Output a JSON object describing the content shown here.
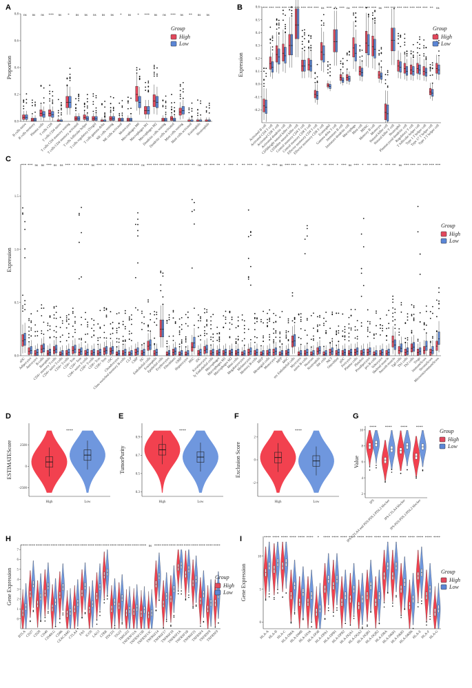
{
  "colors": {
    "high": "#e2485c",
    "low": "#5b86d6",
    "high_violin": "#f2414f",
    "low_violin": "#6f97de"
  },
  "legend": {
    "title": "Group",
    "items": [
      "High",
      "Low"
    ]
  },
  "chart_data": [
    {
      "panel": "A",
      "type": "boxplot",
      "title": "",
      "xlabel": "",
      "ylabel": "Proportion",
      "ylim": [
        0,
        0.8
      ],
      "y_ticks": [
        "0.0",
        "0.2",
        "0.4",
        "0.6",
        "0.8"
      ],
      "categories": [
        "B cells naive",
        "B cells memory",
        "Plasma cells",
        "T cells CD8",
        "T cells CD4 naive",
        "T cells CD4 memory resting",
        "T cells CD4 memory activated",
        "T cells follicular helper",
        "T cells regulatory (Tregs)",
        "T cells gamma delta",
        "NK cells resting",
        "NK cells activated",
        "Monocytes",
        "Macrophages M0",
        "Macrophages M1",
        "Macrophages M2",
        "Dendritic cells resting",
        "Dendritic cells activated",
        "Mast cells resting",
        "Mast cells activated",
        "Eosinophils",
        "Neutrophils"
      ],
      "significance": [
        "ns",
        "ns",
        "ns",
        "***",
        "ns",
        "*",
        "ns",
        "ns",
        "ns",
        "ns",
        "ns",
        "*",
        "ns",
        "*",
        "***",
        "ns",
        "ns",
        "***",
        "ns",
        "**",
        "ns",
        "ns"
      ],
      "series": [
        {
          "name": "High",
          "medians": [
            0.03,
            0.01,
            0.06,
            0.06,
            0.0,
            0.14,
            0.02,
            0.03,
            0.02,
            0.0,
            0.02,
            0.01,
            0.01,
            0.2,
            0.08,
            0.15,
            0.01,
            0.02,
            0.07,
            0.0,
            0.0,
            0.0
          ]
        },
        {
          "name": "Low",
          "medians": [
            0.03,
            0.01,
            0.05,
            0.05,
            0.0,
            0.14,
            0.02,
            0.02,
            0.02,
            0.0,
            0.02,
            0.01,
            0.01,
            0.14,
            0.08,
            0.14,
            0.01,
            0.01,
            0.08,
            0.0,
            0.0,
            0.0
          ]
        }
      ]
    },
    {
      "panel": "B",
      "type": "boxplot",
      "title": "",
      "xlabel": "",
      "ylabel": "Expression",
      "ylim": [
        -0.3,
        0.6
      ],
      "y_ticks": [
        "-0.2",
        "-0.1",
        "0.0",
        "0.1",
        "0.2",
        "0.3",
        "0.4",
        "0.5",
        "0.6"
      ],
      "categories": [
        "Activated B cell",
        "Activated CD4 T cell",
        "Activated CD8 T cell",
        "Activated dendritic cell",
        "CD56bright natural killer cell",
        "CD56dim natural killer cell",
        "Central memory CD4 T cell",
        "Central memory CD8 T cell",
        "Effector memeory CD4 T cell",
        "Effector memeory CD8 T cell",
        "Eosinophil",
        "Gamma delta T cell",
        "Immature B cell",
        "Immature dendritic cell",
        "Macrophage",
        "Mast cell",
        "MDSC",
        "Memory B cell",
        "Monocyte",
        "Natural killer cell",
        "Natural killer T cell",
        "Neutrophil",
        "Plasmacytoid dendritic cell",
        "Regulatory T cell",
        "T follicular helper cell",
        "Type 1 T helper cell",
        "Type 17 T helper cell",
        "Type 2 T helper cell"
      ],
      "significance": [
        "***",
        "***",
        "***",
        "***",
        "***",
        "***",
        "***",
        "***",
        "***",
        "ns",
        "***",
        "*",
        "***",
        "ns",
        "***",
        "***",
        "***",
        "***",
        "ns",
        "***",
        "***",
        "***",
        "***",
        "***",
        "***",
        "***",
        "**",
        "ns"
      ],
      "series": [
        {
          "name": "High",
          "medians": [
            -0.17,
            0.16,
            0.23,
            0.24,
            0.3,
            0.46,
            0.14,
            0.15,
            -0.08,
            0.25,
            -0.01,
            0.33,
            0.05,
            0.05,
            0.28,
            0.1,
            0.32,
            0.29,
            0.07,
            -0.22,
            0.34,
            0.14,
            0.12,
            0.11,
            0.12,
            0.1,
            -0.06,
            0.12
          ]
        },
        {
          "name": "Low",
          "medians": [
            -0.18,
            0.13,
            0.21,
            0.22,
            0.3,
            0.46,
            0.14,
            0.14,
            -0.09,
            0.23,
            -0.02,
            0.33,
            0.03,
            0.04,
            0.24,
            0.09,
            0.3,
            0.27,
            0.06,
            -0.23,
            0.34,
            0.13,
            0.1,
            0.1,
            0.11,
            0.09,
            -0.07,
            0.11
          ]
        }
      ]
    },
    {
      "panel": "C",
      "type": "boxplot",
      "title": "",
      "xlabel": "",
      "ylabel": "Expression",
      "ylim": [
        0,
        1.8
      ],
      "y_ticks": [
        "0.0",
        "0.5",
        "1.0",
        "1.5"
      ],
      "categories": [
        "aDC",
        "Adipocytes",
        "Astrocytes",
        "B-cells",
        "Basophils",
        "CD4+ memory T-cells",
        "CD4+ naive T-cells",
        "CD4+ T-cells",
        "CD4+ Tcm",
        "CD4+ Tem",
        "CD8+ naive T-cells",
        "CD8+ T-cells",
        "CD8+ Tcm",
        "CD8+ Tem",
        "cDC",
        "Chondrocytes",
        "Class-switched memory B-cells",
        "CLP",
        "CMP",
        "DC",
        "Endothelial cells",
        "Eosinophils",
        "Epithelial cells",
        "Erythrocytes",
        "Fibroblasts",
        "GMP",
        "Hepatocytes",
        "HSC",
        "iDC",
        "Keratinocytes",
        "ly Endothelial cells",
        "Macrophages",
        "Macrophages M1",
        "Macrophages M2",
        "Mast cells",
        "Megakaryocytes",
        "Melanocytes",
        "Memory B-cells",
        "MEP",
        "Mesangial cells",
        "Monocytes",
        "MPP",
        "MSC",
        "mv Endothelial cells",
        "Myocytes",
        "naive B-cells",
        "Neurons",
        "Neutrophils",
        "NK cells",
        "NKT",
        "Osteoblast",
        "pDC",
        "Pericytes",
        "Plasma cells",
        "Platelets",
        "Preadipocytes",
        "pro B-cells",
        "Sebocytes",
        "Skeletal muscle",
        "Smooth muscle",
        "Tgd cells",
        "Th1 cells",
        "Th2 cells",
        "Tregs",
        "ImmuneScore",
        "StromaScore",
        "MicroenvironmentScore"
      ],
      "significance": [
        "***",
        "***",
        "ns",
        "ns",
        "***",
        "ns",
        "ns",
        "***",
        "*",
        "***",
        "***",
        "ns",
        "***",
        "*",
        "***",
        "*",
        "***",
        "***",
        "***",
        "ns",
        "***",
        "***",
        "***",
        "***",
        "*",
        "***",
        "***",
        "**",
        "ns",
        "**",
        "***",
        "**",
        "*",
        "***",
        "*",
        "**",
        "***",
        "*",
        "*",
        "ns",
        "***",
        "ns",
        "***",
        "***",
        "*",
        "ns",
        "**",
        "*",
        "**",
        "***",
        "*",
        "***",
        "ns",
        "***",
        "*",
        "**",
        "***",
        "*",
        "***",
        "**",
        "ns",
        "***",
        "***",
        "**",
        "***",
        "***",
        "***"
      ],
      "series": [
        {
          "name": "High",
          "medians": [
            0.14,
            0.04,
            0.02,
            0.06,
            0.02,
            0.05,
            0.01,
            0.02,
            0.05,
            0.03,
            0.02,
            0.02,
            0.02,
            0.04,
            0.04,
            0.01,
            0.02,
            0.01,
            0.03,
            0.02,
            0.09,
            0.02,
            0.25,
            0.01,
            0.03,
            0.01,
            0.01,
            0.08,
            0.02,
            0.05,
            0.02,
            0.02,
            0.02,
            0.02,
            0.02,
            0.01,
            0.03,
            0.02,
            0.01,
            0.02,
            0.03,
            0.01,
            0.02,
            0.13,
            0.01,
            0.02,
            0.01,
            0.04,
            0.01,
            0.03,
            0.02,
            0.02,
            0.02,
            0.03,
            0.02,
            0.03,
            0.01,
            0.02,
            0.02,
            0.13,
            0.05,
            0.03,
            0.07,
            0.03,
            0.05,
            0.03,
            0.09
          ]
        },
        {
          "name": "Low",
          "medians": [
            0.15,
            0.05,
            0.03,
            0.07,
            0.03,
            0.06,
            0.02,
            0.03,
            0.06,
            0.04,
            0.03,
            0.03,
            0.03,
            0.05,
            0.05,
            0.02,
            0.03,
            0.02,
            0.04,
            0.03,
            0.1,
            0.03,
            0.25,
            0.02,
            0.04,
            0.02,
            0.02,
            0.12,
            0.03,
            0.06,
            0.03,
            0.03,
            0.03,
            0.03,
            0.03,
            0.02,
            0.04,
            0.03,
            0.02,
            0.03,
            0.04,
            0.02,
            0.03,
            0.14,
            0.02,
            0.03,
            0.02,
            0.05,
            0.02,
            0.04,
            0.03,
            0.03,
            0.03,
            0.04,
            0.03,
            0.04,
            0.02,
            0.03,
            0.03,
            0.1,
            0.07,
            0.04,
            0.08,
            0.04,
            0.09,
            0.05,
            0.16
          ]
        }
      ]
    },
    {
      "panel": "D",
      "type": "violin",
      "title": "",
      "xlabel": "",
      "ylabel": "ESTIMATEScore",
      "ylim": [
        -3500,
        5000
      ],
      "y_ticks": [
        "-2500",
        "0",
        "2500"
      ],
      "categories": [
        "High",
        "Low"
      ],
      "significance": "****",
      "medians": [
        500,
        1300
      ]
    },
    {
      "panel": "E",
      "type": "violin",
      "title": "",
      "xlabel": "",
      "ylabel": "TumorPurity",
      "ylim": [
        0.25,
        1.05
      ],
      "y_ticks": [
        "0.3",
        "0.5",
        "0.7",
        "0.9"
      ],
      "categories": [
        "High",
        "Low"
      ],
      "significance": "****",
      "medians": [
        0.76,
        0.68
      ]
    },
    {
      "panel": "F",
      "type": "violin",
      "title": "",
      "xlabel": "",
      "ylabel": "Exclusion Score",
      "ylim": [
        -3.2,
        3.2
      ],
      "y_ticks": [
        "-2",
        "0",
        "2"
      ],
      "categories": [
        "High",
        "Low"
      ],
      "significance": "****",
      "medians": [
        0.2,
        -0.1
      ]
    },
    {
      "panel": "G",
      "type": "violin",
      "title": "",
      "xlabel": "",
      "ylabel": "Value",
      "ylim": [
        1.5,
        10.5
      ],
      "y_ticks": [
        "2",
        "4",
        "6",
        "8",
        "10"
      ],
      "categories": [
        "IPS",
        "IPS-CTLA4 and PD1/PDL1/PDL2 blocker",
        "IPS-CTLA4 blocker",
        "IPS-PD1/PDL1/PDL2 blocker"
      ],
      "significance": [
        "****",
        "****",
        "****",
        "****"
      ],
      "series": [
        {
          "name": "High",
          "medians": [
            8.0,
            6.2,
            7.4,
            6.7
          ]
        },
        {
          "name": "Low",
          "medians": [
            8.3,
            7.6,
            8.0,
            7.9
          ]
        }
      ]
    },
    {
      "panel": "H",
      "type": "violin",
      "title": "",
      "xlabel": "",
      "ylabel": "Gene Expression",
      "ylim": [
        -1,
        7.5
      ],
      "y_ticks": [
        "0",
        "1",
        "2",
        "3",
        "4",
        "5",
        "6",
        "7"
      ],
      "categories": [
        "BTLA",
        "CD27",
        "CD28",
        "CD40",
        "CD40LG",
        "CD86",
        "CEACAM5",
        "CTLA4",
        "FAS",
        "ICOS",
        "LAG3",
        "LTBR",
        "PDCD1",
        "TIGIT",
        "TMIGD2",
        "TNFRSF11A",
        "TNFRSF13B",
        "TNFRSF13C",
        "TNFRSF14",
        "TNFRSF17",
        "TNFRSF18",
        "TNFRSF1A",
        "TNFRSF1B",
        "TNFRSF21",
        "TNFRSF4",
        "TNFRSF8",
        "TNFRSF9"
      ],
      "significance": [
        "****",
        "****",
        "****",
        "****",
        "****",
        "****",
        "****",
        "****",
        "****",
        "****",
        "****",
        "****",
        "****",
        "****",
        "****",
        "****",
        "****",
        "ns",
        "****",
        "****",
        "****",
        "****",
        "****",
        "****",
        "****",
        "****",
        "****"
      ],
      "series": [
        {
          "name": "High",
          "medians": [
            0.6,
            2.5,
            1.5,
            2.6,
            1.1,
            2.4,
            0.5,
            1.0,
            2.6,
            0.9,
            2.3,
            4.4,
            1.0,
            1.3,
            0.6,
            0.7,
            0.5,
            0.4,
            3.5,
            1.5,
            2.0,
            5.2,
            4.5,
            3.6,
            1.8,
            1.0,
            1.6
          ]
        },
        {
          "name": "Low",
          "medians": [
            1.2,
            3.5,
            2.2,
            3.3,
            1.7,
            3.2,
            0.7,
            1.6,
            3.3,
            1.5,
            3.2,
            4.7,
            1.7,
            2.1,
            0.9,
            1.1,
            0.9,
            0.6,
            4.3,
            2.3,
            3.0,
            5.4,
            5.0,
            4.0,
            2.5,
            1.6,
            2.4
          ]
        }
      ]
    },
    {
      "panel": "I",
      "type": "violin",
      "title": "",
      "xlabel": "",
      "ylabel": "Gene Expression",
      "ylim": [
        -1,
        13
      ],
      "y_ticks": [
        "0",
        "5",
        "10"
      ],
      "categories": [
        "HLA-A",
        "HLA-B",
        "HLA-C",
        "HLA-DMA",
        "HLA-DMB",
        "HLA-DOA",
        "HLA-DOB",
        "HLA-DPA1",
        "HLA-DPB1",
        "HLA-DPB2",
        "HLA-DQA1",
        "HLA-DQA2",
        "HLA-DQB1",
        "HLA-DQB2",
        "HLA-DRA",
        "HLA-DRB1",
        "HLA-DRB5",
        "HLA-DRB6",
        "HLA-E",
        "HLA-F",
        "HLA-G"
      ],
      "significance": [
        "****",
        "****",
        "****",
        "****",
        "****",
        "****",
        "*",
        "****",
        "****",
        "****",
        "****",
        "****",
        "****",
        "****",
        "****",
        "****",
        "****",
        "****",
        "****",
        "****",
        "****"
      ],
      "series": [
        {
          "name": "High",
          "medians": [
            7.5,
            8.0,
            8.5,
            4.0,
            3.0,
            3.0,
            1.5,
            5.0,
            5.5,
            3.0,
            3.5,
            2.5,
            4.0,
            3.0,
            7.0,
            7.0,
            5.0,
            2.5,
            7.0,
            4.0,
            1.5
          ]
        },
        {
          "name": "Low",
          "medians": [
            8.5,
            9.0,
            9.0,
            5.5,
            4.5,
            4.0,
            2.0,
            6.5,
            6.5,
            4.0,
            5.0,
            3.5,
            5.5,
            4.0,
            8.5,
            8.5,
            6.0,
            3.5,
            7.5,
            5.0,
            2.0
          ]
        }
      ]
    }
  ]
}
